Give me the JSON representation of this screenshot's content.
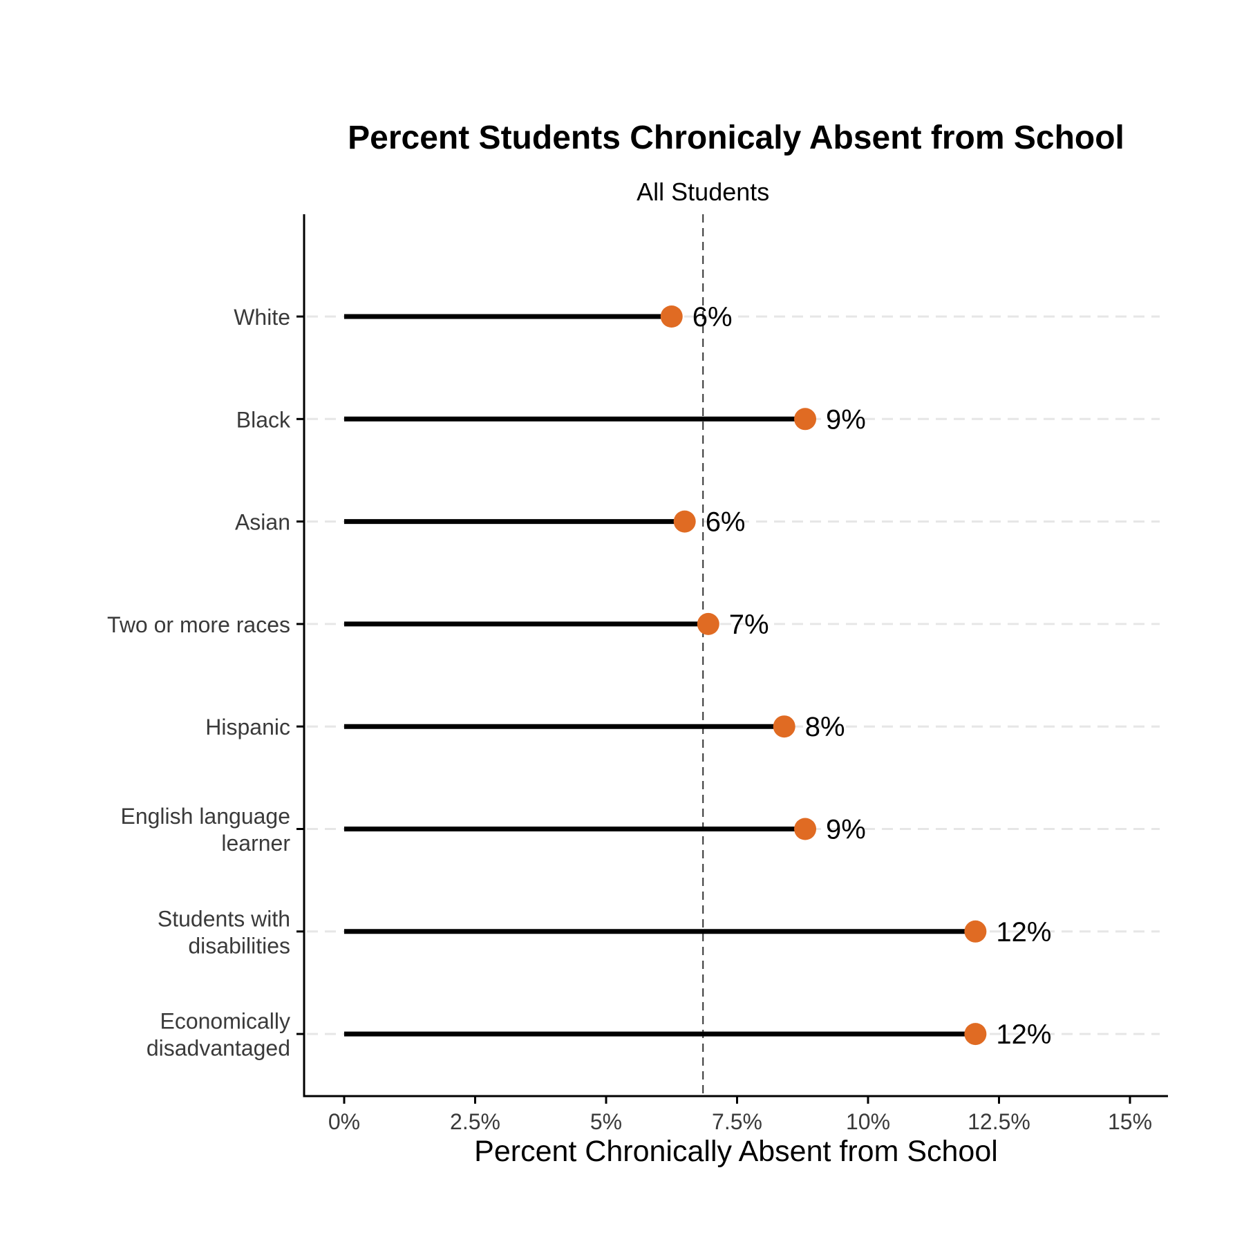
{
  "chart_data": {
    "type": "lollipop",
    "title": "Percent Students Chronicaly Absent from School",
    "xlabel": "Percent Chronically Absent from School",
    "ylabel": "",
    "xlim": [
      0,
      15
    ],
    "x_ticks": [
      {
        "value": 0,
        "label": "0%"
      },
      {
        "value": 2.5,
        "label": "2.5%"
      },
      {
        "value": 5,
        "label": "5%"
      },
      {
        "value": 7.5,
        "label": "7.5%"
      },
      {
        "value": 10,
        "label": "10%"
      },
      {
        "value": 12.5,
        "label": "12.5%"
      },
      {
        "value": 15,
        "label": "15%"
      }
    ],
    "categories": [
      {
        "label": [
          "White"
        ],
        "value": 6.25,
        "data_label": "6%"
      },
      {
        "label": [
          "Black"
        ],
        "value": 8.8,
        "data_label": "9%"
      },
      {
        "label": [
          "Asian"
        ],
        "value": 6.5,
        "data_label": "6%"
      },
      {
        "label": [
          "Two or more races"
        ],
        "value": 6.95,
        "data_label": "7%"
      },
      {
        "label": [
          "Hispanic"
        ],
        "value": 8.4,
        "data_label": "8%"
      },
      {
        "label": [
          "English language",
          "learner"
        ],
        "value": 8.8,
        "data_label": "9%"
      },
      {
        "label": [
          "Students with",
          "disabilities"
        ],
        "value": 12.05,
        "data_label": "12%"
      },
      {
        "label": [
          "Economically",
          "disadvantaged"
        ],
        "value": 12.05,
        "data_label": "12%"
      }
    ],
    "reference_line": {
      "value": 6.85,
      "label": "All Students",
      "style": "dashed"
    },
    "grid": "horizontal dashed light gray",
    "colors": {
      "point": "#e06b23",
      "stem": "#000000",
      "grid": "#e6e6e6",
      "axis": "#000000",
      "reference": "#333333"
    }
  }
}
